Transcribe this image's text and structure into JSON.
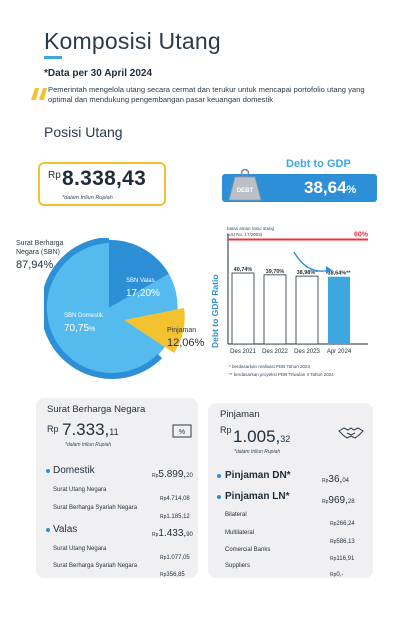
{
  "header": {
    "title": "Komposisi Utang",
    "date_note": "*Data per 30 April 2024",
    "description": "Pemerintah mengelola utang secara cermat dan terukur untuk mencapai portofolio utang yang optimal dan mendukung pengembangan pasar keuangan domestik"
  },
  "posisi": {
    "section_title": "Posisi Utang",
    "rp": "Rp",
    "total_value": "8.338,43",
    "unit": "*dalam triliun Rupiah"
  },
  "debt_to_gdp": {
    "title": "Debt to GDP",
    "value": "38,64",
    "suffix": "%",
    "weight_label": "DEBT"
  },
  "composition": {
    "sbn_label_1": "Surat Berharga",
    "sbn_label_2": "Negara (SBN)",
    "sbn_pct": "87,94%",
    "valas_label": "SBN Valas",
    "valas_pct": "17,20%",
    "domestik_label": "SBN Domestik",
    "domestik_pct_num": "70,75",
    "domestik_pct_suffix": "%",
    "pinjaman_label": "Pinjaman",
    "pinjaman_pct": "12,06%"
  },
  "chart_data": {
    "type": "bar",
    "categories": [
      "Des 2021",
      "Des 2022",
      "Des 2023",
      "Apr 2024"
    ],
    "values": [
      40.74,
      39.7,
      38.98,
      38.64
    ],
    "value_labels": [
      "40,74%",
      "39,70%",
      "38,98%*",
      "38,64%**"
    ],
    "ylabel": "Debt to GDP Ratio",
    "limit_label_1": "batas aman rasio utang",
    "limit_label_2": "(UU No. 17/2003)",
    "limit_value": 60,
    "limit_text": "60%",
    "footnote_1": "*   berdasarkan realisasi PDB Tahun 2023",
    "footnote_2": "**  berdasarkan proyeksi PDB Triwulan II Tahun 2024",
    "colors": {
      "bar": "#ffffff",
      "last_bar": "#3ea7e0",
      "limit": "#e8343a",
      "arrow": "#2d8fd6"
    }
  },
  "sbn_card": {
    "title": "Surat Berharga Negara",
    "rp": "Rp",
    "value_int": "7.333,",
    "value_dec": "11",
    "unit": "*dalam triliun Rupiah",
    "domestik": {
      "label": "Domestik",
      "rp": "Rp",
      "int": "5.899,",
      "dec": "20"
    },
    "sun": {
      "label": "Surat Utang Negara",
      "rp": "Rp",
      "value": "4.714,08"
    },
    "sbsn": {
      "label": "Surat Berharga Syariah Negara",
      "rp": "Rp",
      "value": "1.185,12"
    },
    "valas": {
      "label": "Valas",
      "rp": "Rp",
      "int": "1.433,",
      "dec": "90"
    },
    "sun_valas": {
      "label": "Surat Utang Negara",
      "rp": "Rp",
      "value": "1.077,05"
    },
    "sbsn_valas": {
      "label": "Surat Berharga Syariah Negara",
      "rp": "Rp",
      "value": "356,85"
    }
  },
  "pinjaman_card": {
    "title": "Pinjaman",
    "rp": "Rp",
    "value_int": "1.005,",
    "value_dec": "32",
    "unit": "*dalam triliun Rupiah",
    "dn": {
      "label": "Pinjaman DN*",
      "rp": "Rp",
      "int": "36,",
      "dec": "04"
    },
    "ln": {
      "label": "Pinjaman LN*",
      "rp": "Rp",
      "int": "969,",
      "dec": "28"
    },
    "bilateral": {
      "label": "Bilateral",
      "rp": "Rp",
      "value": "266,24"
    },
    "multilateral": {
      "label": "Multilateral",
      "rp": "Rp",
      "value": "586,13"
    },
    "commercial": {
      "label": "Comercial Banks",
      "rp": "Rp",
      "value": "116,91"
    },
    "suppliers": {
      "label": "Suppliers",
      "rp": "Rp",
      "value": "0,-"
    }
  }
}
